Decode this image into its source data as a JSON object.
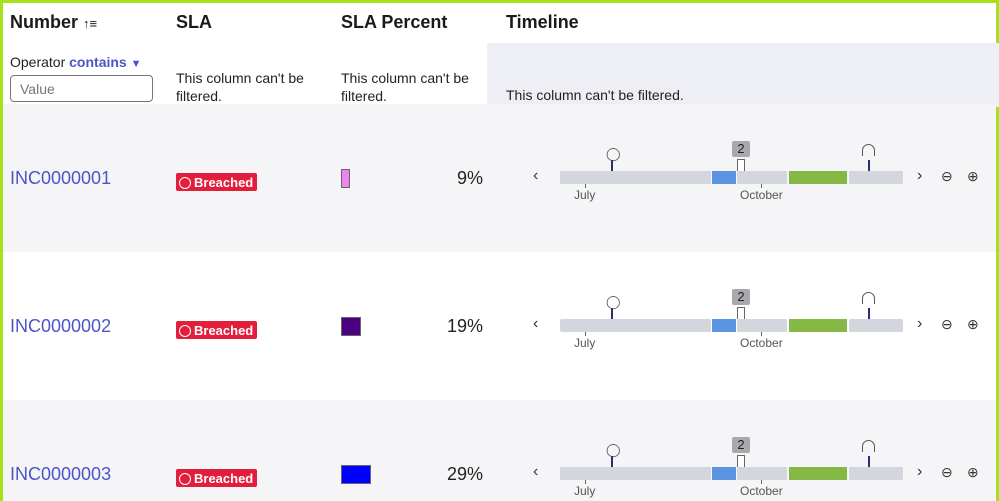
{
  "header": {
    "number": "Number",
    "sla": "SLA",
    "sla_percent": "SLA Percent",
    "timeline": "Timeline",
    "sort_icon": "sort-ascending-icon"
  },
  "filter": {
    "operator_label": "Operator",
    "operator_value": "contains",
    "value_placeholder": "Value",
    "not_filterable": "This column can't be filtered."
  },
  "colors": {
    "frame": "#a6e21a",
    "link": "#4b55c9",
    "breached": "#e31d3c",
    "blue_segment": "#5b94e0",
    "green_segment": "#86b845"
  },
  "rows": [
    {
      "number": "INC0000001",
      "sla": "Breached",
      "percent": "9%",
      "percent_value": 9,
      "swatch": "#ee82ee"
    },
    {
      "number": "INC0000002",
      "sla": "Breached",
      "percent": "19%",
      "percent_value": 19,
      "swatch": "#4b0082"
    },
    {
      "number": "INC0000003",
      "sla": "Breached",
      "percent": "29%",
      "percent_value": 29,
      "swatch": "#0000ff"
    }
  ],
  "timeline": {
    "badge": "2",
    "tick_labels": [
      "July",
      "October"
    ],
    "prev": "‹",
    "next": "›"
  }
}
